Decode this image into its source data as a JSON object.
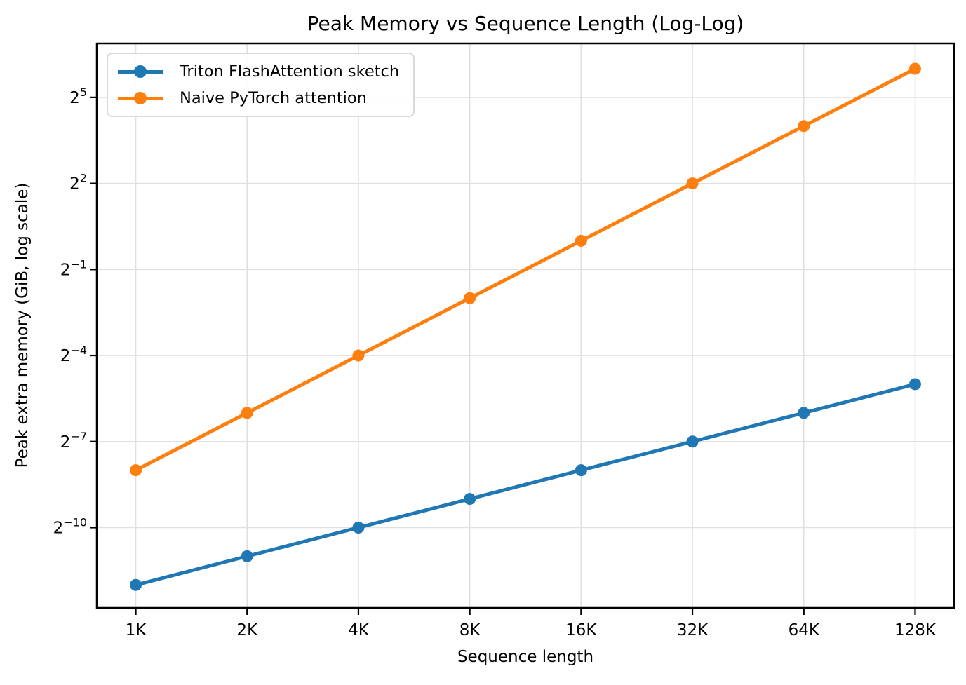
{
  "chart_data": {
    "type": "line",
    "title": "Peak Memory vs Sequence Length (Log-Log)",
    "xlabel": "Sequence length",
    "ylabel": "Peak extra memory (GiB, log scale)",
    "x_categories": [
      "1K",
      "2K",
      "4K",
      "8K",
      "16K",
      "32K",
      "64K",
      "128K"
    ],
    "x_values_tokens": [
      1024,
      2048,
      4096,
      8192,
      16384,
      32768,
      65536,
      131072
    ],
    "series": [
      {
        "name": "Triton FlashAttention sketch",
        "color": "#1f77b4",
        "values_gib_log2": [
          -12,
          -11,
          -10,
          -9,
          -8,
          -7,
          -6,
          -5
        ],
        "values_gib": [
          0.000244140625,
          0.00048828125,
          0.0009765625,
          0.001953125,
          0.00390625,
          0.0078125,
          0.015625,
          0.03125
        ]
      },
      {
        "name": "Naive PyTorch attention",
        "color": "#ff7f0e",
        "values_gib_log2": [
          -8,
          -6,
          -4,
          -2,
          0,
          2,
          4,
          6
        ],
        "values_gib": [
          0.00390625,
          0.015625,
          0.0625,
          0.25,
          1,
          4,
          16,
          64
        ]
      }
    ],
    "y_tick_base": "2",
    "y_ticks_log2": [
      5,
      2,
      -1,
      -4,
      -7,
      -10
    ],
    "xlim_log2": [
      9.65,
      17.35
    ],
    "ylim_log2": [
      -12.8,
      6.88
    ],
    "grid": true,
    "legend_position": "upper left",
    "colors": {
      "grid": "#e0e0e0",
      "spine": "#000000",
      "text": "#000000",
      "background": "#ffffff"
    }
  }
}
